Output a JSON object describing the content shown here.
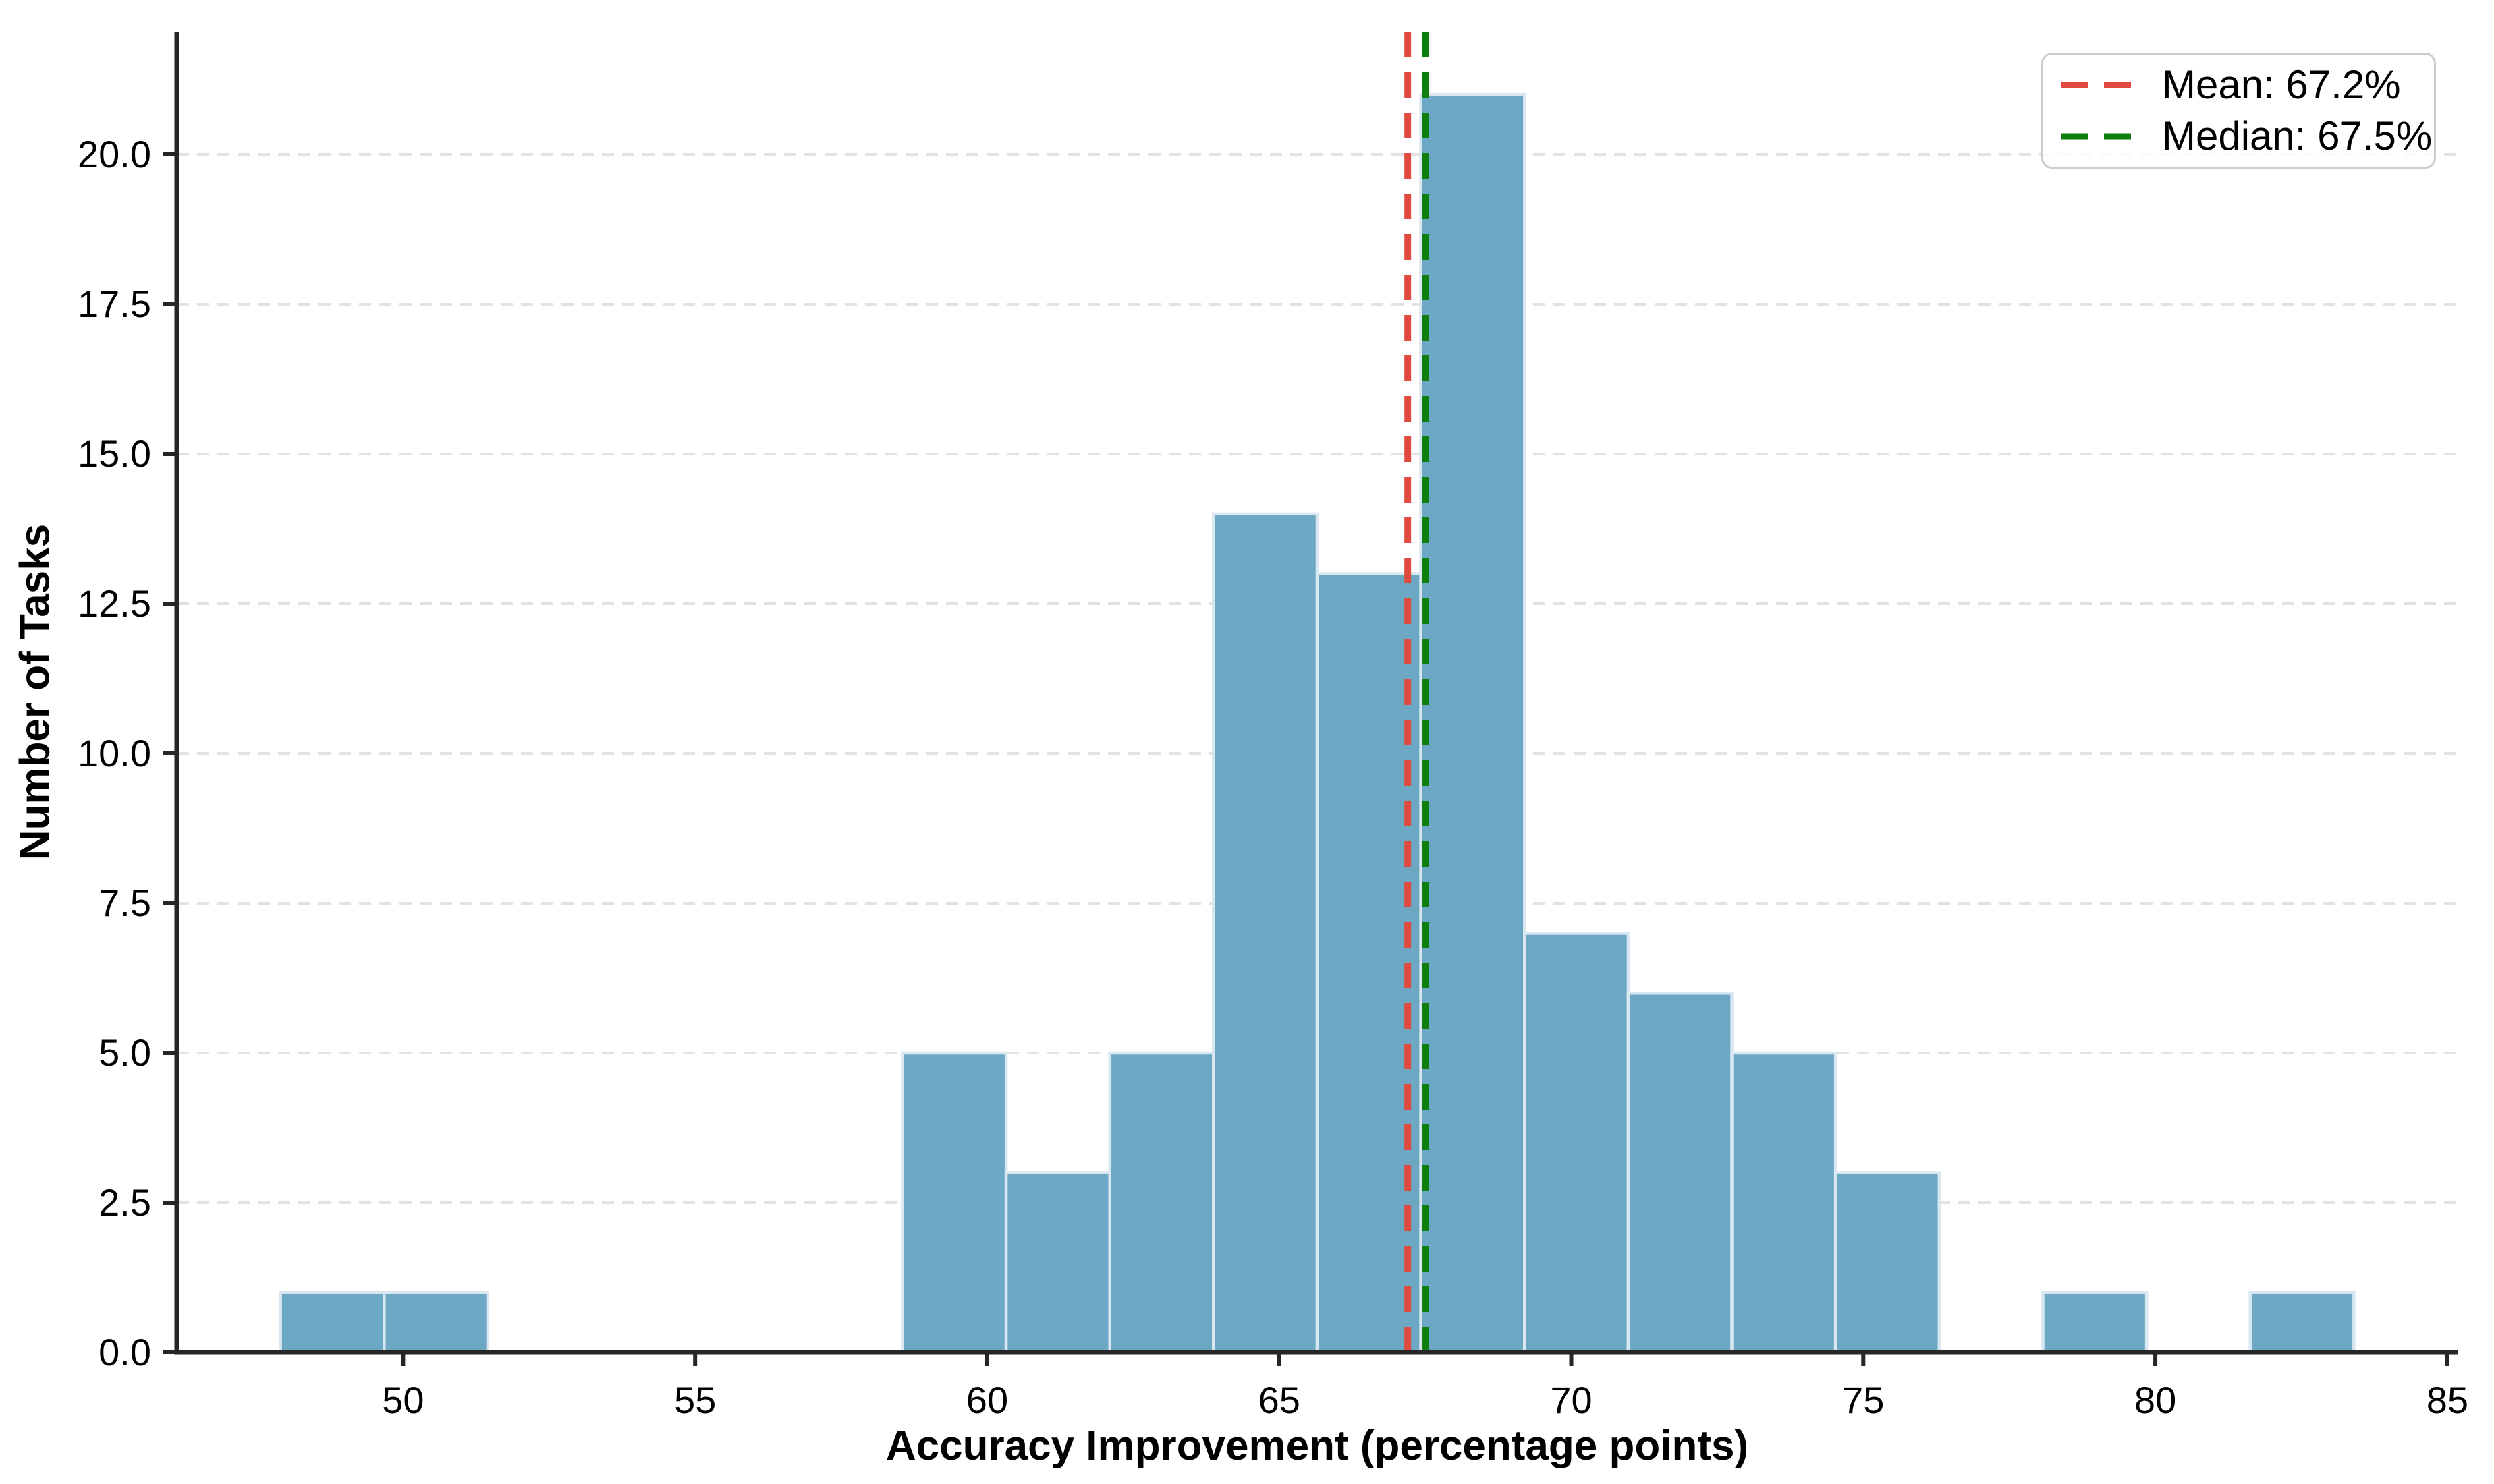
{
  "chart_data": {
    "type": "histogram",
    "title": "",
    "xlabel": "Accuracy Improvement (percentage points)",
    "ylabel": "Number of Tasks",
    "bin_edges": [
      47.9,
      49.675,
      51.45,
      53.225,
      55.0,
      56.775,
      58.55,
      60.325,
      62.1,
      63.875,
      65.65,
      67.425,
      69.2,
      70.975,
      72.75,
      74.525,
      76.3,
      78.075,
      79.85,
      81.625,
      83.4
    ],
    "counts": [
      1,
      1,
      0,
      0,
      0,
      0,
      5,
      3,
      5,
      14,
      13,
      21,
      7,
      6,
      5,
      3,
      0,
      1,
      0,
      1
    ],
    "x_ticks": [
      50,
      55,
      60,
      65,
      70,
      75,
      80,
      85
    ],
    "x_tick_labels": [
      "50",
      "55",
      "60",
      "65",
      "70",
      "75",
      "80",
      "85"
    ],
    "y_ticks": [
      0,
      2.5,
      5,
      7.5,
      10,
      12.5,
      15,
      17.5,
      20
    ],
    "y_tick_labels": [
      "0.0",
      "2.5",
      "5.0",
      "7.5",
      "10.0",
      "12.5",
      "15.0",
      "17.5",
      "20.0"
    ],
    "xlim": [
      46.125,
      85.175
    ],
    "ylim": [
      0,
      22.05
    ],
    "grid": "horizontal dashed",
    "legend_position": "upper right",
    "mean": {
      "value": 67.2,
      "label": "Mean: 67.2%",
      "color": "#e14b3f"
    },
    "median": {
      "value": 67.5,
      "label": "Median: 67.5%",
      "color": "#0e7f0e"
    },
    "colors": {
      "bar_fill": "#6ca8c4",
      "bar_edge": "#d8e7f1",
      "grid": "#e2e2e2",
      "axis": "#262626",
      "text": "#000000",
      "legend_border": "#cccccc"
    }
  }
}
